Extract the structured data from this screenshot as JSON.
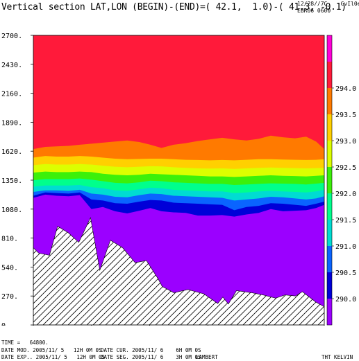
{
  "header": {
    "title": "Vertical section LAT,LON (BEGIN)-(END)=( 42.1,  1.0)-( 41.3, -0.1)",
    "date_line": "12/28//7C    CvIl0eMae",
    "run_line": "EBR06 0600"
  },
  "footer": {
    "time": "TIME =   64800.",
    "date_mod": "DATE MOD. 2005/11/ 5   12H 0M 0S",
    "date_cur": "DATE CUR. 2005/11/ 6    6H 0M 0S",
    "date_exp": "DATE EXP.. 2005/11/ 5   12H 0M 0S",
    "date_seg": "DATE SEG. 2005/11/ 6    3H 0M 0S",
    "projection": "LAMBERT",
    "field": "THT KELVIN"
  },
  "chart_data": {
    "type": "area",
    "title": "",
    "xlabel": "",
    "ylabel": "",
    "xlim": [
      0,
      131722
    ],
    "ylim": [
      0,
      2700
    ],
    "x_ticks": [
      "0.",
      "26344.",
      "52689.",
      "79033.",
      "105378.",
      "131722."
    ],
    "y_ticks": [
      "0.",
      "270.",
      "540.",
      "810.",
      "1080.",
      "1350.",
      "1620.",
      "1890.",
      "2160.",
      "2430.",
      "2700."
    ],
    "colorbar": {
      "levels": [
        "290.0",
        "290.5",
        "291.0",
        "291.5",
        "292.0",
        "292.5",
        "293.0",
        "293.5",
        "294.0"
      ],
      "colors": [
        "#9b00ff",
        "#0000d8",
        "#0a64ff",
        "#00dcd2",
        "#00ff8c",
        "#3cf00a",
        "#dcff00",
        "#ffd000",
        "#ff7a00",
        "#ff1a3a",
        "#ff00d8"
      ]
    },
    "terrain": {
      "x": [
        0,
        2400,
        7300,
        11000,
        15800,
        20600,
        25900,
        30100,
        34900,
        40400,
        46100,
        51200,
        56500,
        58300,
        63600,
        70000,
        77200,
        83500,
        85800,
        88300,
        92000,
        99000,
        104000,
        109700,
        114000,
        118700,
        121800,
        127800,
        131722
      ],
      "y": [
        720,
        670,
        650,
        920,
        860,
        770,
        1000,
        510,
        790,
        720,
        580,
        600,
        430,
        360,
        300,
        330,
        290,
        200,
        260,
        195,
        320,
        300,
        280,
        250,
        280,
        270,
        310,
        215,
        170
      ]
    },
    "isentropes": {
      "x": [
        0,
        5400,
        10500,
        16000,
        21000,
        26300,
        31500,
        37000,
        42500,
        48000,
        53000,
        58000,
        63500,
        69000,
        74500,
        80000,
        85500,
        91000,
        96500,
        102000,
        107500,
        113000,
        118500,
        123500,
        128000,
        131722
      ],
      "boundaries": [
        {
          "level": "290.0",
          "y": [
            1185,
            1215,
            1205,
            1200,
            1210,
            1080,
            1100,
            1060,
            1040,
            1065,
            1090,
            1060,
            1050,
            1045,
            1020,
            1020,
            1025,
            1010,
            1030,
            1045,
            1080,
            1060,
            1065,
            1070,
            1090,
            1120
          ]
        },
        {
          "level": "290.5",
          "y": [
            1205,
            1235,
            1230,
            1225,
            1235,
            1170,
            1160,
            1135,
            1130,
            1150,
            1165,
            1160,
            1140,
            1135,
            1130,
            1125,
            1120,
            1070,
            1100,
            1110,
            1135,
            1130,
            1120,
            1110,
            1130,
            1150
          ]
        },
        {
          "level": "291.0",
          "y": [
            1240,
            1255,
            1255,
            1250,
            1260,
            1225,
            1215,
            1195,
            1190,
            1210,
            1225,
            1220,
            1205,
            1200,
            1195,
            1190,
            1185,
            1160,
            1170,
            1180,
            1195,
            1190,
            1180,
            1170,
            1180,
            1200
          ]
        },
        {
          "level": "291.5",
          "y": [
            1290,
            1300,
            1300,
            1300,
            1305,
            1285,
            1275,
            1255,
            1250,
            1265,
            1280,
            1275,
            1260,
            1255,
            1250,
            1245,
            1245,
            1230,
            1235,
            1245,
            1250,
            1245,
            1240,
            1235,
            1245,
            1260
          ]
        },
        {
          "level": "292.0",
          "y": [
            1350,
            1360,
            1360,
            1360,
            1365,
            1355,
            1340,
            1325,
            1320,
            1330,
            1345,
            1340,
            1330,
            1325,
            1320,
            1315,
            1315,
            1305,
            1310,
            1315,
            1320,
            1318,
            1315,
            1310,
            1318,
            1325
          ]
        },
        {
          "level": "292.5",
          "y": [
            1420,
            1430,
            1425,
            1425,
            1430,
            1425,
            1410,
            1400,
            1395,
            1400,
            1410,
            1405,
            1400,
            1395,
            1390,
            1385,
            1385,
            1380,
            1385,
            1390,
            1395,
            1390,
            1388,
            1385,
            1390,
            1395
          ]
        },
        {
          "level": "293.0",
          "y": [
            1490,
            1500,
            1495,
            1495,
            1500,
            1495,
            1485,
            1475,
            1470,
            1475,
            1480,
            1478,
            1470,
            1465,
            1460,
            1458,
            1460,
            1455,
            1460,
            1465,
            1468,
            1465,
            1462,
            1460,
            1462,
            1465
          ]
        },
        {
          "level": "293.5",
          "y": [
            1560,
            1575,
            1570,
            1570,
            1575,
            1570,
            1560,
            1550,
            1545,
            1548,
            1550,
            1550,
            1545,
            1540,
            1538,
            1535,
            1538,
            1535,
            1540,
            1545,
            1545,
            1542,
            1540,
            1538,
            1540,
            1545
          ]
        },
        {
          "level": "294.0",
          "y": [
            1640,
            1660,
            1665,
            1670,
            1680,
            1690,
            1700,
            1710,
            1720,
            1705,
            1680,
            1650,
            1680,
            1695,
            1715,
            1730,
            1745,
            1730,
            1720,
            1735,
            1765,
            1750,
            1740,
            1755,
            1710,
            1640
          ]
        }
      ]
    }
  }
}
